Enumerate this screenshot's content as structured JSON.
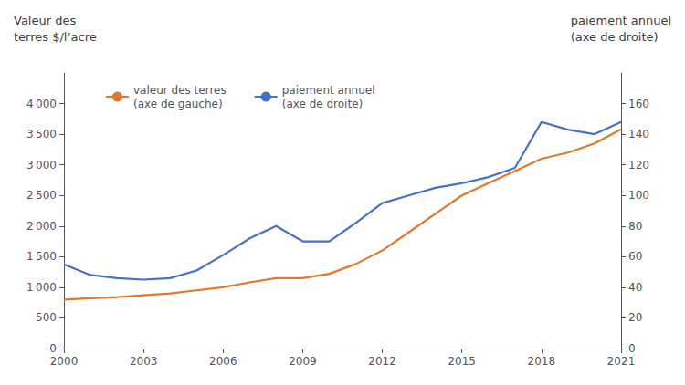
{
  "chart_data": {
    "type": "line",
    "ylabel": "Valeur des\nterres $/l’acre",
    "y2label": "paiement annuel\n(axe de droite)",
    "x": [
      2000,
      2001,
      2002,
      2003,
      2004,
      2005,
      2006,
      2007,
      2008,
      2009,
      2010,
      2011,
      2012,
      2013,
      2014,
      2015,
      2016,
      2017,
      2018,
      2019,
      2020,
      2021
    ],
    "series": [
      {
        "name": "valeur des terres\n(axe de gauche)",
        "color": "#E07830",
        "values": [
          800,
          820,
          840,
          870,
          900,
          950,
          1000,
          1080,
          1150,
          1150,
          1220,
          1380,
          1600,
          1900,
          2200,
          2500,
          2700,
          2900,
          3100,
          3200,
          3350,
          3580
        ]
      },
      {
        "name": "paiement annuel\n(axe de droite)",
        "color": "#4472C4",
        "axis": "y2",
        "values": [
          55,
          48,
          46,
          45,
          46,
          51,
          61,
          72,
          80,
          70,
          70,
          82,
          95,
          100,
          105,
          108,
          112,
          118,
          148,
          143,
          140,
          148
        ]
      }
    ],
    "xlim": [
      2000,
      2021
    ],
    "xticks": [
      2000,
      2003,
      2006,
      2009,
      2012,
      2015,
      2018,
      2021
    ],
    "ylim": [
      0,
      4500
    ],
    "yticks": [
      0,
      500,
      {
        "value": 1000,
        "label": "1 000"
      },
      {
        "value": 1500,
        "label": "1 500"
      },
      {
        "value": 2000,
        "label": "2 000"
      },
      {
        "value": 2500,
        "label": "2 500"
      },
      {
        "value": 3000,
        "label": "3 000"
      },
      {
        "value": 3500,
        "label": "3 500"
      },
      {
        "value": 4000,
        "label": "4 000"
      }
    ],
    "y2lim": [
      0,
      180
    ],
    "y2ticks": [
      0,
      20,
      40,
      60,
      80,
      100,
      120,
      140,
      160
    ],
    "grid": false,
    "legend": "upper left"
  }
}
